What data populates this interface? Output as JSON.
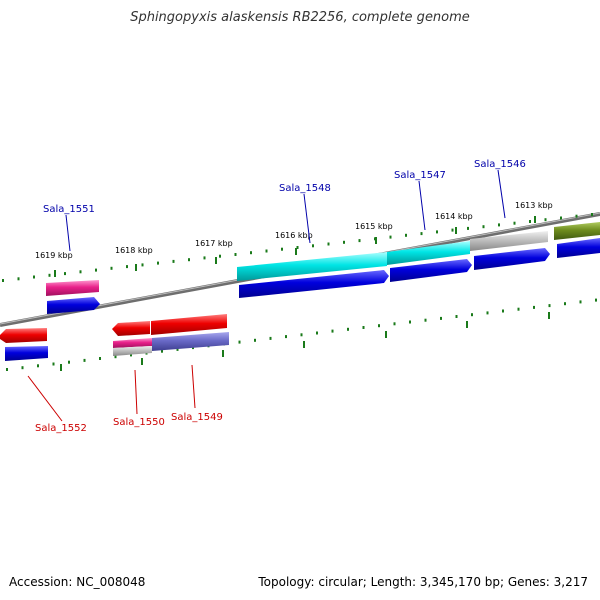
{
  "title": "Sphingopyxis alaskensis RB2256, complete genome",
  "footer": {
    "accession": "Accession: NC_008048",
    "summary": "Topology: circular; Length: 3,345,170 bp; Genes: 3,217"
  },
  "ticks": [
    "1613 kbp",
    "1614 kbp",
    "1615 kbp",
    "1616 kbp",
    "1617 kbp",
    "1618 kbp",
    "1619 kbp"
  ],
  "genes_upper": [
    "Sala_1546",
    "Sala_1547",
    "Sala_1548",
    "Sala_1551"
  ],
  "genes_lower": [
    "Sala_1549",
    "Sala_1550",
    "Sala_1552"
  ],
  "colors": {
    "blue": "#0000dd",
    "cyan": "#00e5e5",
    "magenta": "#e8208a",
    "red": "#ee0000",
    "gray": "#b8b8b8",
    "olive": "#6e8c1e",
    "slate": "#6a6ac8",
    "tick_green": "#1a7a1a",
    "label_blue": "#0000aa",
    "label_red": "#cc0000",
    "backbone": "#888888"
  }
}
